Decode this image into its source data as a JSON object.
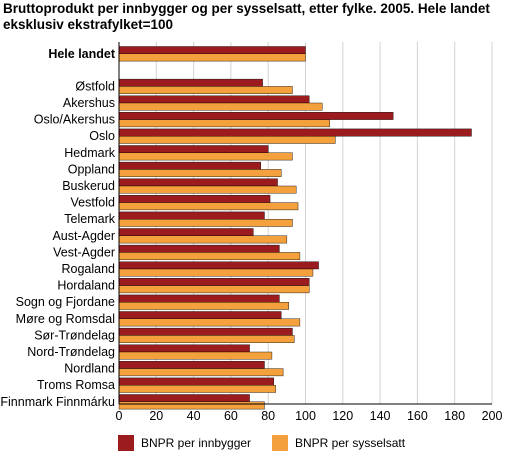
{
  "chart_data": {
    "type": "bar",
    "orientation": "horizontal",
    "title": "Bruttoprodukt per innbygger og per sysselsatt, etter fylke. 2005. Hele landet eksklusiv ekstrafylket=100",
    "xlabel": "",
    "ylabel": "",
    "xlim": [
      0,
      200
    ],
    "xticks": [
      "0",
      "20",
      "40",
      "60",
      "80",
      "100",
      "120",
      "140",
      "160",
      "180",
      "200"
    ],
    "grid": true,
    "legend_position": "bottom",
    "categories": [
      "Hele landet",
      "Østfold",
      "Akershus",
      "Oslo/Akershus",
      "Oslo",
      "Hedmark",
      "Oppland",
      "Buskerud",
      "Vestfold",
      "Telemark",
      "Aust-Agder",
      "Vest-Agder",
      "Rogaland",
      "Hordaland",
      "Sogn og Fjordane",
      "Møre og Romsdal",
      "Sør-Trøndelag",
      "Nord-Trøndelag",
      "Nordland",
      "Troms Romsa",
      "Finnmark Finnmárku"
    ],
    "bold_categories": [
      "Hele landet"
    ],
    "gap_after": [
      "Hele landet"
    ],
    "series": [
      {
        "name": "BNPR per innbygger",
        "color": "#9c1b1f",
        "values": [
          100,
          77,
          102,
          147,
          189,
          80,
          76,
          85,
          81,
          78,
          72,
          86,
          107,
          102,
          86,
          87,
          93,
          70,
          78,
          83,
          70
        ]
      },
      {
        "name": "BNPR per sysselsatt",
        "color": "#f4a03c",
        "values": [
          100,
          93,
          109,
          113,
          116,
          93,
          87,
          95,
          96,
          93,
          90,
          97,
          104,
          102,
          91,
          97,
          94,
          82,
          88,
          84,
          78
        ]
      }
    ]
  }
}
